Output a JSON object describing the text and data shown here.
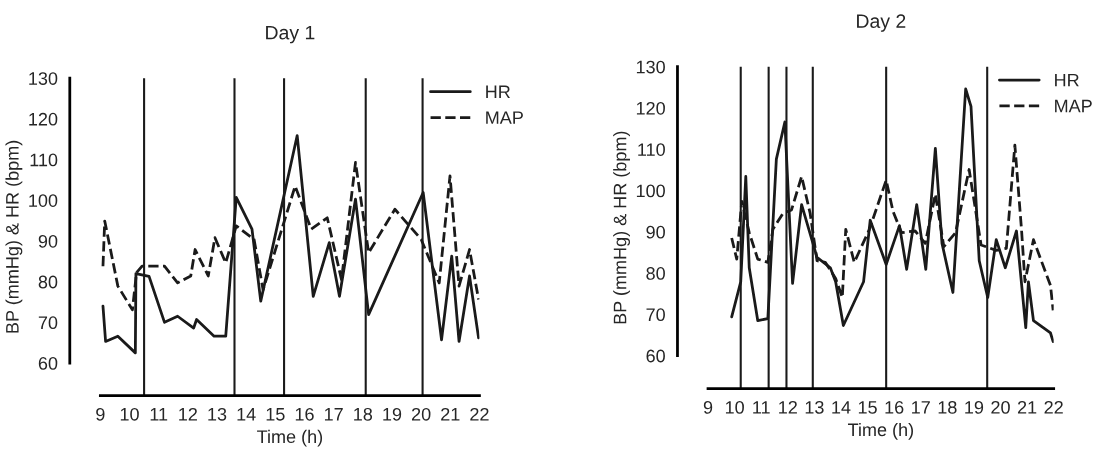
{
  "chart_data": [
    {
      "type": "line",
      "title": "Day 1",
      "xlabel": "Time (h)",
      "ylabel": "BP (mmHg) & HR (bpm)",
      "xlim": [
        9,
        22
      ],
      "ylim": [
        52,
        130
      ],
      "xticks": [
        9,
        10,
        11,
        12,
        13,
        14,
        15,
        16,
        17,
        18,
        19,
        20,
        21,
        22
      ],
      "yticks": [
        60,
        70,
        80,
        90,
        100,
        110,
        120,
        130
      ],
      "grid": false,
      "legend": "top right",
      "marker": "none",
      "series": [
        {
          "name": "HR",
          "color": "#1a1a1a",
          "line_style": "solid",
          "x": [
            9.09,
            9.18,
            9.6,
            10.2,
            10.22,
            10.67,
            11.2,
            11.65,
            12.2,
            12.3,
            12.9,
            13.3,
            13.66,
            14.2,
            14.5,
            15.75,
            16.3,
            16.85,
            17.2,
            17.75,
            18.2,
            20.07,
            20.7,
            21.05,
            21.3,
            21.66,
            21.97
          ],
          "values": [
            74,
            65.3,
            66.6,
            62.5,
            82,
            81.3,
            70,
            71.5,
            68.6,
            70.7,
            66.6,
            66.6,
            100.7,
            92.9,
            75.2,
            115.9,
            76.4,
            89.6,
            76.4,
            100.3,
            71.9,
            101.9,
            65.7,
            86.3,
            65.3,
            81.4,
            66.2
          ]
        },
        {
          "name": "MAP",
          "color": "#1a1a1a",
          "line_style": "dashed",
          "x": [
            9.09,
            9.15,
            9.6,
            10.1,
            10.24,
            10.43,
            11.2,
            11.65,
            12.1,
            12.25,
            12.7,
            12.93,
            13.3,
            13.66,
            14.27,
            14.58,
            15.68,
            16.23,
            16.78,
            17.27,
            17.75,
            18.2,
            19.1,
            20.0,
            20.62,
            20.99,
            21.3,
            21.66,
            21.97
          ],
          "values": [
            83.8,
            94.9,
            78.9,
            73.1,
            82.2,
            83.8,
            83.8,
            79.7,
            81.4,
            87.9,
            81.4,
            90.8,
            84.6,
            93.7,
            90.4,
            78,
            103.5,
            92.9,
            95.7,
            80.5,
            109.3,
            87.1,
            97.8,
            90.4,
            79.7,
            106,
            78.9,
            87.9,
            75.6
          ]
        }
      ],
      "ref_lines": [
        {
          "axis": "x",
          "value": 10.5,
          "color": "#1a1a1a"
        },
        {
          "axis": "x",
          "value": 13.6,
          "color": "#1a1a1a"
        },
        {
          "axis": "x",
          "value": 15.3,
          "color": "#1a1a1a"
        },
        {
          "axis": "x",
          "value": 18.1,
          "color": "#1a1a1a"
        },
        {
          "axis": "x",
          "value": 20.05,
          "color": "#1a1a1a"
        }
      ]
    },
    {
      "type": "line",
      "title": "Day 2",
      "xlabel": "Time (h)",
      "ylabel": "BP (mmHg) & HR (bpm)",
      "xlim": [
        9,
        22
      ],
      "ylim": [
        52,
        130
      ],
      "xticks": [
        9,
        10,
        11,
        12,
        13,
        14,
        15,
        16,
        17,
        18,
        19,
        20,
        21,
        22
      ],
      "yticks": [
        60,
        70,
        80,
        90,
        100,
        110,
        120,
        130
      ],
      "grid": false,
      "legend": "top right",
      "marker": "none",
      "series": [
        {
          "name": "HR",
          "color": "#1a1a1a",
          "line_style": "solid",
          "x": [
            9.89,
            10.23,
            10.42,
            10.55,
            10.87,
            11.25,
            11.57,
            11.89,
            12.18,
            12.52,
            13.1,
            13.6,
            13.8,
            14.09,
            14.85,
            15.1,
            15.7,
            16.2,
            16.47,
            16.85,
            17.19,
            17.55,
            17.8,
            18.21,
            18.69,
            18.89,
            19.2,
            19.52,
            19.84,
            20.18,
            20.6,
            20.95,
            21.05,
            21.24,
            21.88,
            21.98
          ],
          "values": [
            69.4,
            77.9,
            103.4,
            81.3,
            68.5,
            69,
            107.6,
            116.6,
            77.5,
            96.6,
            83.8,
            81.3,
            77.9,
            67.3,
            77.9,
            92.8,
            82.1,
            91.5,
            80.9,
            96.6,
            80.9,
            110.2,
            87.2,
            75.3,
            124.6,
            120.4,
            83,
            74.1,
            88.1,
            81.3,
            90.2,
            66.8,
            77.9,
            68.5,
            65.5,
            63.4
          ]
        },
        {
          "name": "MAP",
          "color": "#1a1a1a",
          "line_style": "dashed",
          "x": [
            9.89,
            10.08,
            10.27,
            10.55,
            10.87,
            11.25,
            11.44,
            11.82,
            12.14,
            12.52,
            12.84,
            13.1,
            13.41,
            13.8,
            14.05,
            14.18,
            14.5,
            15.07,
            15.7,
            15.96,
            16.28,
            16.79,
            17.17,
            17.55,
            17.87,
            18.31,
            18.82,
            19.27,
            19.84,
            20.22,
            20.54,
            20.79,
            20.92,
            21.24,
            21.88,
            21.98
          ],
          "values": [
            88.5,
            83.4,
            97.4,
            89.8,
            83.4,
            82.6,
            90.6,
            94.5,
            95.3,
            103.4,
            94.5,
            83,
            82.6,
            78.7,
            74.1,
            90.6,
            82.6,
            90.6,
            102.5,
            94.9,
            89.8,
            90.2,
            87.2,
            99.1,
            86.4,
            89.8,
            105.1,
            86.8,
            85.5,
            86,
            111,
            90.6,
            77.9,
            88.1,
            77,
            71
          ]
        }
      ],
      "ref_lines": [
        {
          "axis": "x",
          "value": 10.23,
          "color": "#1a1a1a"
        },
        {
          "axis": "x",
          "value": 11.28,
          "color": "#1a1a1a"
        },
        {
          "axis": "x",
          "value": 11.95,
          "color": "#1a1a1a"
        },
        {
          "axis": "x",
          "value": 12.94,
          "color": "#1a1a1a"
        },
        {
          "axis": "x",
          "value": 15.7,
          "color": "#1a1a1a"
        },
        {
          "axis": "x",
          "value": 19.5,
          "color": "#1a1a1a"
        }
      ]
    }
  ]
}
